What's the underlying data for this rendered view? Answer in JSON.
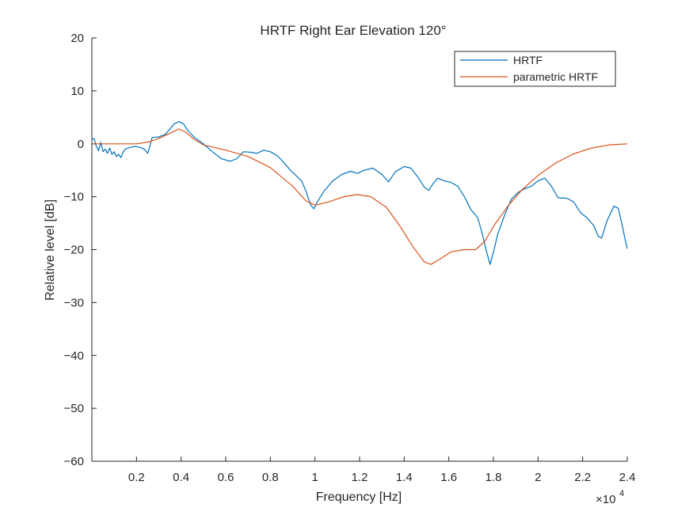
{
  "chart_data": {
    "type": "line",
    "title": "HRTF Right Ear Elevation 120°",
    "xlabel": "Frequency [Hz]",
    "ylabel": "Relative level [dB]",
    "x_exponent_label": "×10",
    "x_exponent_power": "4",
    "xlim": [
      0,
      24000
    ],
    "ylim": [
      -60,
      20
    ],
    "x_ticks": [
      2000,
      4000,
      6000,
      8000,
      10000,
      12000,
      14000,
      16000,
      18000,
      20000,
      22000,
      24000
    ],
    "x_tick_labels": [
      "0.2",
      "0.4",
      "0.6",
      "0.8",
      "1",
      "1.2",
      "1.4",
      "1.6",
      "1.8",
      "2",
      "2.2",
      "2.4"
    ],
    "y_ticks": [
      20,
      10,
      0,
      -10,
      -20,
      -30,
      -40,
      -50,
      -60
    ],
    "y_tick_labels": [
      "20",
      "10",
      "0",
      "−10",
      "−20",
      "−30",
      "−40",
      "−50",
      "−60"
    ],
    "grid": false,
    "legend_position": "top-right",
    "series": [
      {
        "name": "HRTF",
        "color": "#0072BD",
        "points": [
          [
            0,
            0.8
          ],
          [
            100,
            1.0
          ],
          [
            200,
            -0.5
          ],
          [
            300,
            -1.3
          ],
          [
            400,
            0.3
          ],
          [
            500,
            -1.5
          ],
          [
            600,
            -1.0
          ],
          [
            700,
            -1.8
          ],
          [
            800,
            -0.8
          ],
          [
            900,
            -2.0
          ],
          [
            1000,
            -1.5
          ],
          [
            1100,
            -2.4
          ],
          [
            1200,
            -2.0
          ],
          [
            1300,
            -2.6
          ],
          [
            1400,
            -1.6
          ],
          [
            1500,
            -1.0
          ],
          [
            1700,
            -0.7
          ],
          [
            1900,
            -0.5
          ],
          [
            2100,
            -0.6
          ],
          [
            2300,
            -0.9
          ],
          [
            2400,
            -1.2
          ],
          [
            2500,
            -1.8
          ],
          [
            2600,
            -0.5
          ],
          [
            2700,
            1.2
          ],
          [
            3000,
            1.3
          ],
          [
            3300,
            1.8
          ],
          [
            3500,
            2.8
          ],
          [
            3700,
            3.8
          ],
          [
            3900,
            4.2
          ],
          [
            4100,
            3.8
          ],
          [
            4300,
            2.5
          ],
          [
            4600,
            1.2
          ],
          [
            5000,
            0.0
          ],
          [
            5400,
            -1.5
          ],
          [
            5800,
            -2.8
          ],
          [
            6200,
            -3.3
          ],
          [
            6500,
            -2.8
          ],
          [
            6800,
            -1.5
          ],
          [
            7100,
            -1.6
          ],
          [
            7400,
            -1.8
          ],
          [
            7700,
            -1.2
          ],
          [
            8000,
            -1.5
          ],
          [
            8300,
            -2.2
          ],
          [
            8600,
            -3.5
          ],
          [
            8900,
            -5.0
          ],
          [
            9200,
            -6.2
          ],
          [
            9400,
            -7.0
          ],
          [
            9600,
            -9.0
          ],
          [
            9800,
            -11.5
          ],
          [
            9950,
            -12.3
          ],
          [
            10100,
            -11.0
          ],
          [
            10400,
            -9.0
          ],
          [
            10800,
            -7.0
          ],
          [
            11200,
            -5.8
          ],
          [
            11600,
            -5.2
          ],
          [
            11900,
            -5.6
          ],
          [
            12200,
            -5.0
          ],
          [
            12600,
            -4.6
          ],
          [
            13000,
            -5.8
          ],
          [
            13300,
            -7.2
          ],
          [
            13600,
            -5.3
          ],
          [
            14000,
            -4.3
          ],
          [
            14300,
            -4.6
          ],
          [
            14600,
            -6.2
          ],
          [
            14900,
            -8.2
          ],
          [
            15100,
            -8.8
          ],
          [
            15300,
            -7.5
          ],
          [
            15500,
            -6.5
          ],
          [
            15800,
            -7.0
          ],
          [
            16100,
            -7.3
          ],
          [
            16400,
            -8.0
          ],
          [
            16700,
            -10.0
          ],
          [
            17000,
            -12.5
          ],
          [
            17300,
            -14.0
          ],
          [
            17500,
            -17.0
          ],
          [
            17700,
            -20.5
          ],
          [
            17850,
            -22.8
          ],
          [
            18000,
            -20.5
          ],
          [
            18200,
            -17.0
          ],
          [
            18500,
            -13.5
          ],
          [
            18800,
            -10.5
          ],
          [
            19100,
            -9.2
          ],
          [
            19400,
            -8.5
          ],
          [
            19700,
            -8.0
          ],
          [
            20000,
            -7.0
          ],
          [
            20300,
            -6.5
          ],
          [
            20600,
            -8.0
          ],
          [
            20900,
            -10.2
          ],
          [
            21300,
            -10.3
          ],
          [
            21600,
            -11.0
          ],
          [
            21900,
            -13.0
          ],
          [
            22200,
            -14.0
          ],
          [
            22500,
            -15.5
          ],
          [
            22700,
            -17.5
          ],
          [
            22850,
            -17.8
          ],
          [
            23100,
            -14.5
          ],
          [
            23400,
            -11.8
          ],
          [
            23600,
            -12.2
          ],
          [
            23750,
            -15.0
          ],
          [
            23900,
            -18.0
          ],
          [
            24000,
            -19.8
          ]
        ]
      },
      {
        "name": "parametric HRTF",
        "color": "#D95319",
        "points": [
          [
            0,
            0.0
          ],
          [
            1000,
            0.0
          ],
          [
            2000,
            0.0
          ],
          [
            2600,
            0.4
          ],
          [
            3000,
            1.0
          ],
          [
            3500,
            2.0
          ],
          [
            3900,
            2.8
          ],
          [
            4200,
            2.2
          ],
          [
            4600,
            0.8
          ],
          [
            5000,
            -0.2
          ],
          [
            6000,
            -1.2
          ],
          [
            7000,
            -2.4
          ],
          [
            8000,
            -4.5
          ],
          [
            9000,
            -8.0
          ],
          [
            9600,
            -10.8
          ],
          [
            10000,
            -11.6
          ],
          [
            10600,
            -11.0
          ],
          [
            11300,
            -10.0
          ],
          [
            11900,
            -9.6
          ],
          [
            12500,
            -10.0
          ],
          [
            13200,
            -12.0
          ],
          [
            13800,
            -15.5
          ],
          [
            14400,
            -19.5
          ],
          [
            14900,
            -22.3
          ],
          [
            15200,
            -22.8
          ],
          [
            15600,
            -21.8
          ],
          [
            16100,
            -20.4
          ],
          [
            16700,
            -20.0
          ],
          [
            17200,
            -20.0
          ],
          [
            17600,
            -18.5
          ],
          [
            18100,
            -15.0
          ],
          [
            18700,
            -11.5
          ],
          [
            19300,
            -8.6
          ],
          [
            20000,
            -6.0
          ],
          [
            20800,
            -3.6
          ],
          [
            21600,
            -1.9
          ],
          [
            22400,
            -0.8
          ],
          [
            23200,
            -0.2
          ],
          [
            24000,
            0.0
          ]
        ]
      }
    ]
  }
}
